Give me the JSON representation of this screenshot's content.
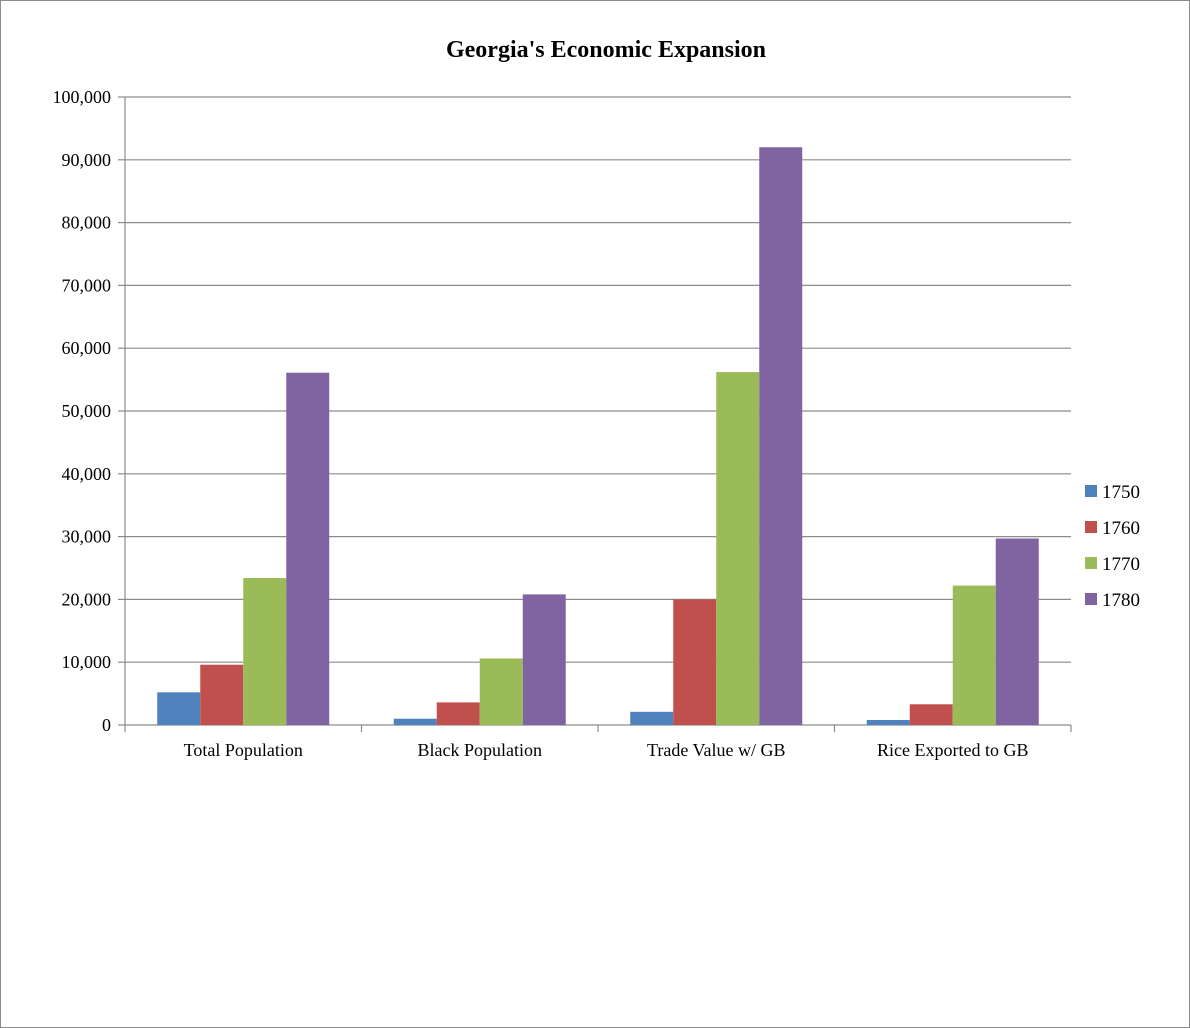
{
  "chart_data": {
    "type": "bar",
    "title": "Georgia's Economic Expansion",
    "xlabel": "",
    "ylabel": "",
    "categories": [
      "Total Population",
      "Black Population",
      "Trade Value w/ GB",
      "Rice Exported to GB"
    ],
    "series": [
      {
        "name": "1750",
        "color": "#4f81bd",
        "values": [
          5200,
          1000,
          2100,
          800
        ]
      },
      {
        "name": "1760",
        "color": "#c0504d",
        "values": [
          9600,
          3600,
          20000,
          3300
        ]
      },
      {
        "name": "1770",
        "color": "#9bbb59",
        "values": [
          23400,
          10600,
          56200,
          22200
        ]
      },
      {
        "name": "1780",
        "color": "#8064a2",
        "values": [
          56100,
          20800,
          92000,
          29700
        ]
      }
    ],
    "ylim": [
      0,
      100000
    ],
    "yticks": [
      "0",
      "10,000",
      "20,000",
      "30,000",
      "40,000",
      "50,000",
      "60,000",
      "70,000",
      "80,000",
      "90,000",
      "100,000"
    ],
    "grid": true,
    "legend_position": "right"
  }
}
